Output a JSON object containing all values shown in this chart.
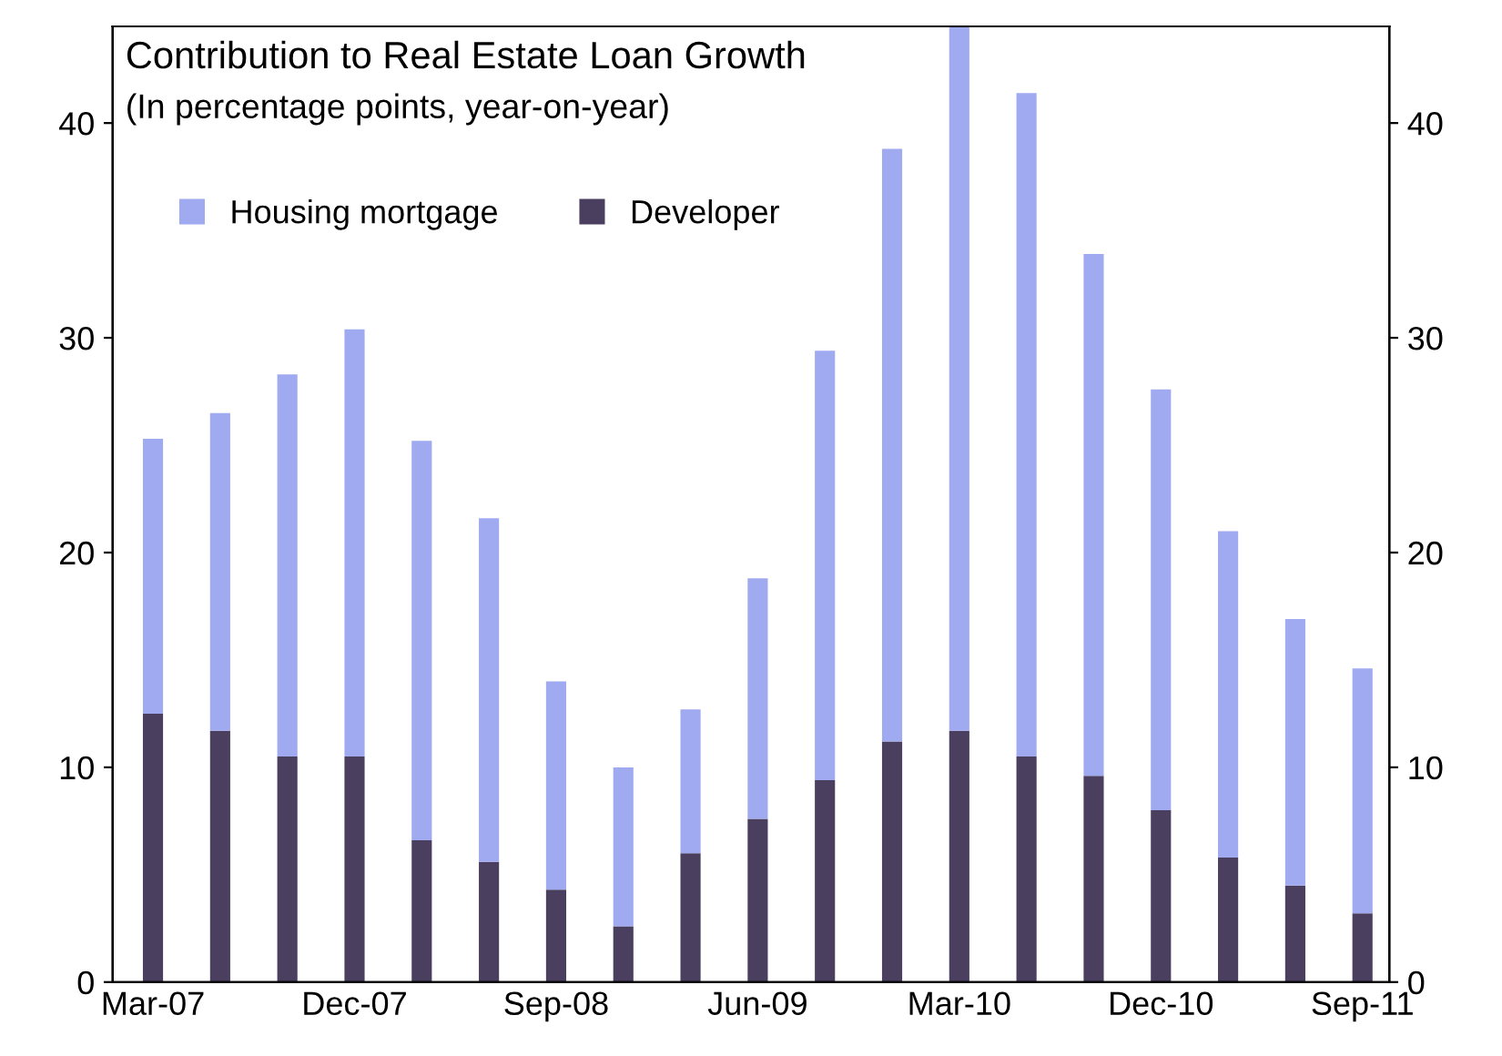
{
  "chart_data": {
    "type": "bar",
    "title": "Contribution to Real Estate Loan Growth",
    "subtitle": "(In percentage points, year-on-year)",
    "categories": [
      "Mar-07",
      null,
      null,
      "Dec-07",
      null,
      null,
      "Sep-08",
      null,
      null,
      "Jun-09",
      null,
      null,
      "Mar-10",
      null,
      null,
      "Dec-10",
      null,
      null,
      "Sep-11"
    ],
    "stacked": true,
    "series": [
      {
        "name": "Developer",
        "color": "#4a3f5f",
        "values": [
          12.5,
          11.7,
          10.5,
          10.5,
          6.6,
          5.6,
          4.3,
          2.6,
          6.0,
          7.6,
          9.4,
          11.2,
          11.7,
          10.5,
          9.6,
          8.0,
          5.8,
          4.5,
          3.2
        ]
      },
      {
        "name": "Housing mortgage",
        "color": "#a0aaf0",
        "values": [
          12.8,
          14.8,
          17.8,
          19.9,
          18.6,
          16.0,
          9.7,
          7.4,
          6.7,
          11.2,
          20.0,
          27.6,
          32.8,
          30.9,
          24.3,
          19.6,
          15.2,
          12.4,
          11.4
        ]
      }
    ],
    "ylim": [
      0,
      44.5
    ],
    "yticks": [
      0,
      10,
      20,
      30,
      40
    ],
    "y2lim": [
      0,
      44.5
    ],
    "y2ticks": [
      0,
      10,
      20,
      30,
      40
    ],
    "grid": false,
    "legend": "top left"
  }
}
